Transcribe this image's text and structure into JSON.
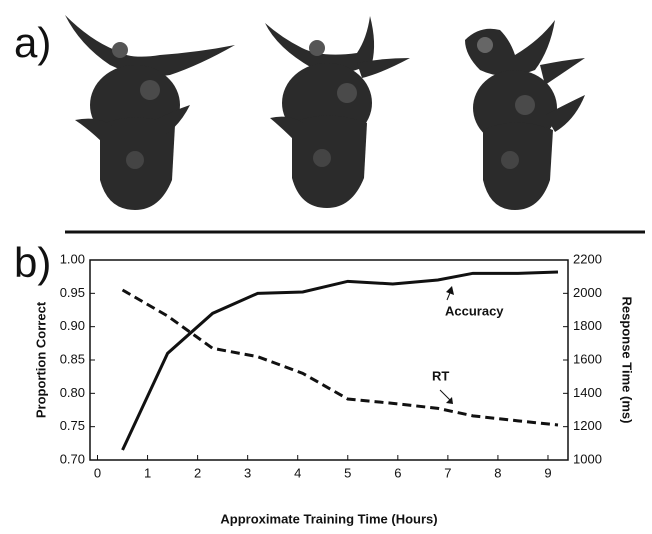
{
  "panel_labels": [
    "a)",
    "b)"
  ],
  "chart_data": {
    "type": "line",
    "xlabel": "Approximate Training Time (Hours)",
    "ylabel": "Proportion Correct",
    "y2label": "Response Time (ms)",
    "xlim": [
      -0.15,
      9.4
    ],
    "xticks": [
      0,
      1,
      2,
      3,
      4,
      5,
      6,
      7,
      8,
      9
    ],
    "ylim": [
      0.7,
      1.0
    ],
    "yticks": [
      {
        "value": 0.7,
        "label": "0.70"
      },
      0.75,
      {
        "value": 0.8,
        "label": "0.80"
      },
      0.85,
      {
        "value": 0.9,
        "label": "0.90"
      },
      0.95,
      {
        "value": 1.0,
        "label": "1.00"
      }
    ],
    "y2lim": [
      1000,
      2200
    ],
    "y2ticks": [
      1000,
      1200,
      1400,
      1600,
      1800,
      2000,
      2200
    ],
    "series": [
      {
        "name": "Accuracy",
        "color": "#111111",
        "dashed": false,
        "x": [
          0.5,
          1.4,
          2.3,
          3.2,
          4.1,
          5.0,
          5.9,
          6.8,
          7.5,
          8.4,
          9.2
        ],
        "values": [
          0.715,
          0.86,
          0.92,
          0.95,
          0.952,
          0.968,
          0.964,
          0.97,
          0.98,
          0.98,
          0.982
        ]
      },
      {
        "name": "RT",
        "color": "#111111",
        "dashed": true,
        "axis": "y2",
        "x": [
          0.5,
          1.4,
          2.3,
          3.2,
          4.1,
          5.0,
          5.9,
          6.8,
          7.5,
          8.4,
          9.2
        ],
        "values": [
          2020,
          1864,
          1670,
          1620,
          1520,
          1366,
          1340,
          1310,
          1265,
          1235,
          1210
        ]
      }
    ]
  }
}
